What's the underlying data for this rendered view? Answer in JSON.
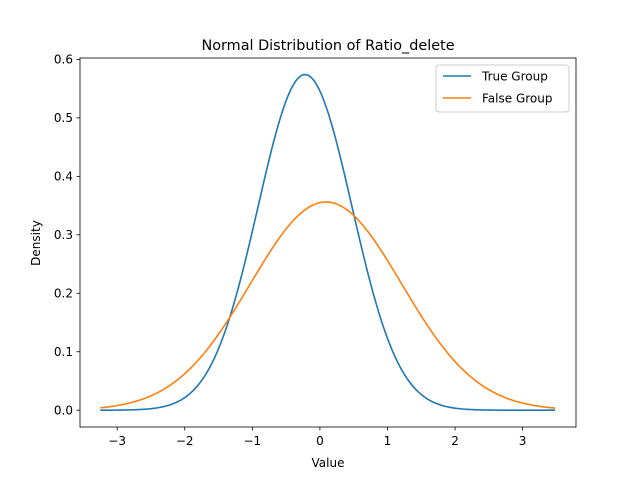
{
  "chart_data": {
    "type": "line",
    "title": "Normal Distribution of Ratio_delete",
    "xlabel": "Value",
    "ylabel": "Density",
    "xlim": [
      -3.55,
      3.79
    ],
    "ylim": [
      -0.0287,
      0.6024
    ],
    "x_ticks": [
      -3,
      -2,
      -1,
      0,
      1,
      2,
      3
    ],
    "y_ticks": [
      0.0,
      0.1,
      0.2,
      0.3,
      0.4,
      0.5,
      0.6
    ],
    "y_tick_labels": [
      "0.0",
      "0.1",
      "0.2",
      "0.3",
      "0.4",
      "0.5",
      "0.6"
    ],
    "x_tick_labels": [
      "−3",
      "−2",
      "−1",
      "0",
      "1",
      "2",
      "3"
    ],
    "grid": false,
    "legend_position": "top-right",
    "x_range": [
      -3.25,
      3.48
    ],
    "series": [
      {
        "name": "True Group",
        "color": "#1f77b4",
        "distribution": "normal",
        "mean": -0.22,
        "std": 0.695
      },
      {
        "name": "False Group",
        "color": "#ff7f0e",
        "distribution": "normal",
        "mean": 0.09,
        "std": 1.12
      }
    ]
  }
}
